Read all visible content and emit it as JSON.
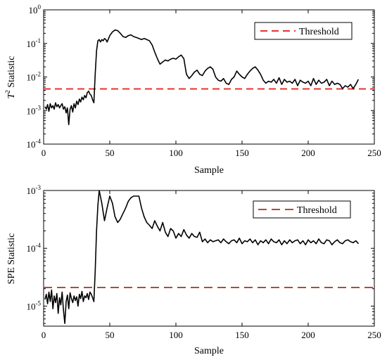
{
  "chart_data": [
    {
      "type": "line",
      "ylabel_italic": "T",
      "ylabel_sup": "2",
      "ylabel_rest": " Statistic",
      "xlabel": "Sample",
      "xlim": [
        0,
        250
      ],
      "ylim": [
        0.0001,
        1
      ],
      "yscale": "log",
      "xticks": [
        0,
        50,
        100,
        150,
        200,
        250
      ],
      "yticks": [
        {
          "value": 0.0001,
          "base": "10",
          "exp": "-4"
        },
        {
          "value": 0.001,
          "base": "10",
          "exp": "-3"
        },
        {
          "value": 0.01,
          "base": "10",
          "exp": "-2"
        },
        {
          "value": 0.1,
          "base": "10",
          "exp": "-1"
        },
        {
          "value": 1,
          "base": "10",
          "exp": "0"
        }
      ],
      "legend": {
        "position": "top-right",
        "entries": [
          {
            "label": "Threshold",
            "style": "dashed",
            "color": "#e8312f"
          }
        ]
      },
      "threshold": {
        "value": 0.0044,
        "color": "#e8312f"
      },
      "series": [
        {
          "color": "#000000",
          "x": [
            1,
            2,
            3,
            4,
            5,
            6,
            7,
            8,
            9,
            10,
            11,
            12,
            13,
            14,
            15,
            16,
            17,
            18,
            19,
            20,
            21,
            22,
            23,
            24,
            25,
            26,
            27,
            28,
            29,
            30,
            31,
            32,
            33,
            34,
            35,
            36,
            37,
            38,
            39,
            40,
            41,
            42,
            43,
            44,
            45,
            46,
            47,
            48,
            50,
            52,
            54,
            56,
            58,
            60,
            62,
            64,
            66,
            68,
            70,
            72,
            74,
            76,
            78,
            80,
            82,
            84,
            86,
            88,
            90,
            92,
            94,
            96,
            98,
            100,
            102,
            104,
            106,
            108,
            110,
            112,
            114,
            116,
            118,
            120,
            122,
            124,
            126,
            128,
            130,
            132,
            134,
            136,
            138,
            140,
            142,
            144,
            146,
            148,
            150,
            152,
            154,
            156,
            158,
            160,
            162,
            164,
            166,
            168,
            170,
            172,
            174,
            176,
            178,
            180,
            182,
            184,
            186,
            188,
            190,
            192,
            194,
            196,
            198,
            200,
            202,
            204,
            206,
            208,
            210,
            212,
            214,
            216,
            218,
            220,
            222,
            224,
            226,
            228,
            230,
            232,
            234,
            236,
            238
          ],
          "y": [
            0.0013,
            0.0011,
            0.0015,
            0.00095,
            0.0016,
            0.0012,
            0.0014,
            0.0011,
            0.0017,
            0.0013,
            0.0015,
            0.0012,
            0.0014,
            0.0016,
            0.0011,
            0.0013,
            0.00085,
            0.0012,
            0.00038,
            0.0011,
            0.0014,
            0.0009,
            0.0016,
            0.0012,
            0.0019,
            0.0015,
            0.0022,
            0.0018,
            0.0025,
            0.0021,
            0.0028,
            0.0024,
            0.0034,
            0.0038,
            0.0031,
            0.0028,
            0.0021,
            0.0017,
            0.012,
            0.06,
            0.12,
            0.13,
            0.11,
            0.13,
            0.12,
            0.14,
            0.13,
            0.11,
            0.17,
            0.22,
            0.25,
            0.24,
            0.2,
            0.16,
            0.15,
            0.17,
            0.18,
            0.16,
            0.15,
            0.14,
            0.13,
            0.14,
            0.13,
            0.12,
            0.09,
            0.055,
            0.035,
            0.024,
            0.028,
            0.032,
            0.03,
            0.034,
            0.036,
            0.034,
            0.04,
            0.045,
            0.035,
            0.012,
            0.009,
            0.011,
            0.014,
            0.016,
            0.012,
            0.011,
            0.015,
            0.018,
            0.02,
            0.017,
            0.01,
            0.008,
            0.0075,
            0.009,
            0.0065,
            0.006,
            0.0085,
            0.01,
            0.015,
            0.012,
            0.01,
            0.009,
            0.012,
            0.015,
            0.018,
            0.02,
            0.016,
            0.012,
            0.008,
            0.0065,
            0.0075,
            0.007,
            0.0085,
            0.0065,
            0.0095,
            0.006,
            0.0085,
            0.007,
            0.0075,
            0.0065,
            0.0085,
            0.0055,
            0.008,
            0.007,
            0.0065,
            0.0075,
            0.0055,
            0.009,
            0.006,
            0.008,
            0.0065,
            0.007,
            0.0085,
            0.0055,
            0.0075,
            0.006,
            0.0065,
            0.006,
            0.0045,
            0.0055,
            0.005,
            0.006,
            0.0045,
            0.006,
            0.0085
          ]
        }
      ]
    },
    {
      "type": "line",
      "ylabel": "SPE Statistic",
      "xlabel": "Sample",
      "xlim": [
        0,
        250
      ],
      "ylim": [
        4.5e-06,
        0.001
      ],
      "yscale": "log",
      "xticks": [
        0,
        50,
        100,
        150,
        200,
        250
      ],
      "yticks": [
        {
          "value": 1e-05,
          "base": "10",
          "exp": "-5"
        },
        {
          "value": 0.0001,
          "base": "10",
          "exp": "-4"
        },
        {
          "value": 0.001,
          "base": "10",
          "exp": "-3"
        }
      ],
      "legend": {
        "position": "top-right",
        "entries": [
          {
            "label": "Threshold",
            "style": "dashed",
            "color": "#b24a36"
          }
        ]
      },
      "threshold": {
        "value": 2.1e-05,
        "color": "#b24a36"
      },
      "series": [
        {
          "color": "#000000",
          "x": [
            1,
            2,
            3,
            4,
            5,
            6,
            7,
            8,
            9,
            10,
            11,
            12,
            13,
            14,
            15,
            16,
            17,
            18,
            19,
            20,
            21,
            22,
            23,
            24,
            25,
            26,
            27,
            28,
            29,
            30,
            31,
            32,
            33,
            34,
            35,
            36,
            37,
            38,
            39,
            40,
            41,
            42,
            44,
            46,
            48,
            50,
            52,
            54,
            56,
            58,
            60,
            62,
            64,
            66,
            68,
            70,
            72,
            74,
            76,
            78,
            80,
            82,
            84,
            86,
            88,
            90,
            92,
            94,
            96,
            98,
            100,
            102,
            104,
            106,
            108,
            110,
            112,
            114,
            116,
            118,
            120,
            122,
            124,
            126,
            128,
            130,
            132,
            134,
            136,
            138,
            140,
            142,
            144,
            146,
            148,
            150,
            152,
            154,
            156,
            158,
            160,
            162,
            164,
            166,
            168,
            170,
            172,
            174,
            176,
            178,
            180,
            182,
            184,
            186,
            188,
            190,
            192,
            194,
            196,
            198,
            200,
            202,
            204,
            206,
            208,
            210,
            212,
            214,
            216,
            218,
            220,
            222,
            224,
            226,
            228,
            230,
            232,
            234,
            236,
            238
          ],
          "y": [
            1.3e-05,
            1.6e-05,
            1.1e-05,
            1.75e-05,
            1.2e-05,
            1.9e-05,
            9e-06,
            1.5e-05,
            1.15e-05,
            1.65e-05,
            7.5e-06,
            1.4e-05,
            1.05e-05,
            1.75e-05,
            8.5e-06,
            5e-06,
            1.2e-05,
            1.55e-05,
            9e-06,
            1.7e-05,
            1.35e-05,
            1.15e-05,
            1.5e-05,
            1.25e-05,
            1.45e-05,
            1e-05,
            1.6e-05,
            1.35e-05,
            1.8e-05,
            1.2e-05,
            1.5e-05,
            1.4e-05,
            1.65e-05,
            1.3e-05,
            1.75e-05,
            1.6e-05,
            1.4e-05,
            1.2e-05,
            4e-05,
            0.0002,
            0.00055,
            0.001,
            0.0006,
            0.0003,
            0.0005,
            0.0008,
            0.0006,
            0.00035,
            0.00028,
            0.00032,
            0.0004,
            0.0005,
            0.00065,
            0.00075,
            0.0008,
            0.0008,
            0.0008,
            0.0005,
            0.00035,
            0.00028,
            0.00025,
            0.00022,
            0.0003,
            0.00024,
            0.0002,
            0.00028,
            0.00019,
            0.00016,
            0.00022,
            0.0002,
            0.00015,
            0.00018,
            0.00016,
            0.00021,
            0.00017,
            0.00015,
            0.00018,
            0.00016,
            0.000155,
            0.00019,
            0.00013,
            0.000145,
            0.000125,
            0.00014,
            0.00013,
            0.000135,
            0.00014,
            0.000125,
            0.000145,
            0.00013,
            0.00012,
            0.000135,
            0.00014,
            0.000125,
            0.00015,
            0.00012,
            0.000135,
            0.00013,
            0.000145,
            0.000125,
            0.00014,
            0.000115,
            0.000135,
            0.000125,
            0.00014,
            0.00012,
            0.000145,
            0.00013,
            0.000125,
            0.00014,
            0.000115,
            0.000135,
            0.00012,
            0.00014,
            0.000125,
            0.000135,
            0.00014,
            0.00012,
            0.000135,
            0.000115,
            0.00014,
            0.000125,
            0.000135,
            0.00012,
            0.000145,
            0.000125,
            0.00012,
            0.00014,
            0.000135,
            0.000115,
            0.00013,
            0.00014,
            0.000125,
            0.00012,
            0.000135,
            0.00014,
            0.00013,
            0.000125,
            0.000135,
            0.00012
          ]
        }
      ]
    }
  ]
}
